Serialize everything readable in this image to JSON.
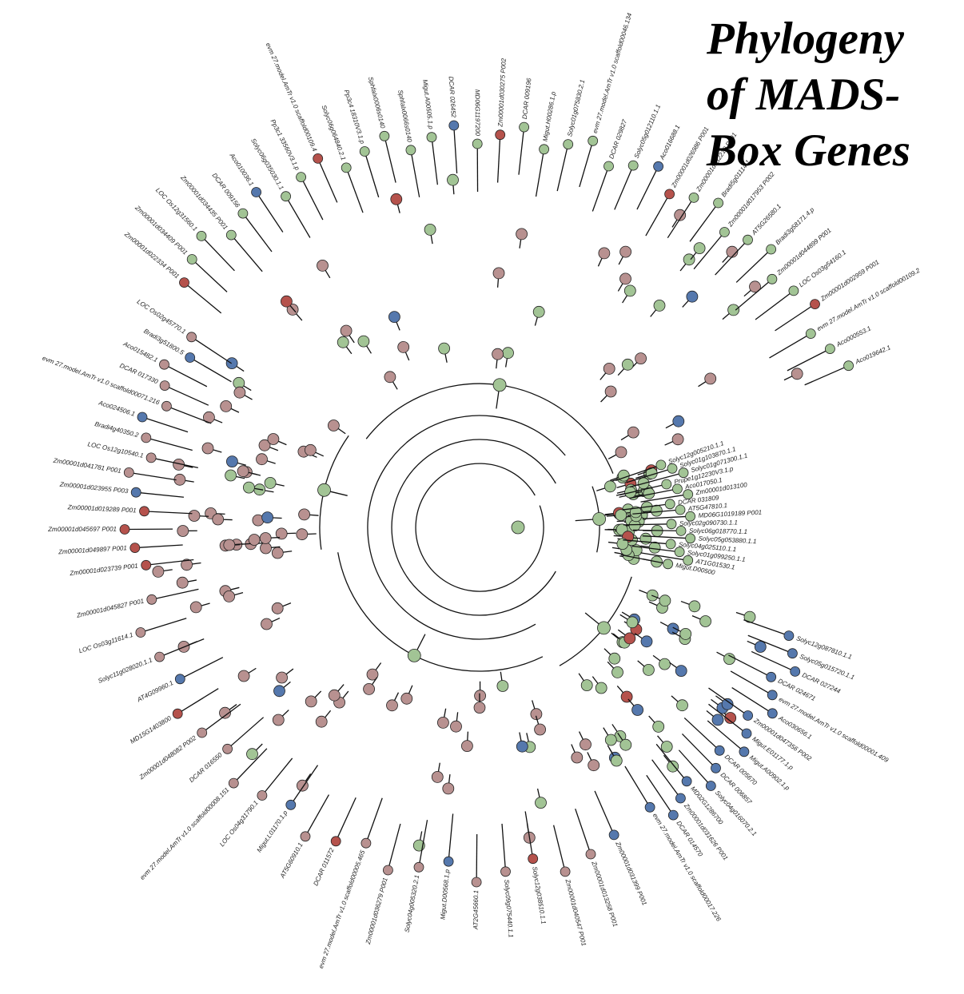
{
  "title_lines": [
    "Phylogeny",
    "of MADS-",
    "Box Genes"
  ],
  "colors": {
    "brown": "#b89190",
    "green": "#a2c495",
    "blue": "#5578ad",
    "red": "#b5524c",
    "branch": "#111111"
  },
  "tree": {
    "clades": [
      {
        "color": "green",
        "labels": [
          "Solyc12g005210.1.1",
          "Solyc01g103870.1.1",
          "Solyc01g071300.1.1",
          "Prupe1g12230V3.1.p",
          "Aco017050.1",
          "Zm00001d013100",
          "DCAR 031809",
          "AT5G47810.1",
          "MD06G1019189 P001",
          "Solyc02g090730.1.1",
          "Solyc06g018770.1.1",
          "Solyc05g053880.1.1",
          "Solyc04g025110.1.1",
          "Solyc01g099250.1.1",
          "AT1G01530.1",
          "Migut.D00500"
        ]
      },
      {
        "color": "blue",
        "labels": [
          "Solyc12g087810.1.1",
          "Solyc05g015720.1.1",
          "DCAR 027244",
          "DCAR 024671",
          "evm 27.model.AmTr v1.0 scaffold00001.409",
          "Aco030656.1",
          "Zm00001d047356 P002",
          "Migut.E01177.1.p",
          "Migut.A00902.1.p",
          "DCAR 005670",
          "DCAR 006857",
          "Solyc04g016070.2.1",
          "MD02G1286700",
          "Zm00001d031626 P001",
          "DCAR 014570",
          "evm 27.model.AmTr v1.0 scaffold00017.226"
        ]
      },
      {
        "color": "brown",
        "labels": [
          "Zm00001d031399 P001",
          "Zm00001d013258 P001",
          "Zm00001d040547 P001",
          "Solyc12g038510.1.1",
          "Solyc09g075440.1.1",
          "AT2G45660.1",
          "Migut.D00568.1.p",
          "Solyc04g005320.2.1",
          "Zm00001d036279 P001",
          "evm 27.model.AmTr v1.0 scaffold00005.465",
          "DCAR 011572",
          "AT5G60910.1",
          "Migut.L01170.1.p",
          "LOC Os04g31790.1",
          "evm 27.model.AmTr v1.0 scaffold00008.151",
          "DCAR 016550",
          "Zm00001d048082 P002",
          "MD15G1403800",
          "AT4G09960.1",
          "Solyc11g028020.1.1",
          "LOC Os03g11614.1",
          "Zm00001d045827 P001"
        ]
      },
      {
        "color": "red",
        "labels": [
          "Zm00001d023739 P001",
          "Zm00001d049897 P001",
          "Zm00001d045697 P001",
          "Zm00001d019289 P001",
          "Zm00001d023955 P003",
          "Zm00001d041781 P001",
          "LOC Os12g10540.1",
          "Bradi4g40350.2",
          "Aco024506.1",
          "evm 27.model.AmTr v1.0 scaffold00071.216",
          "DCAR 017330",
          "Aco015482.1",
          "Bradi3g51800.5",
          "LOC Os02g45770.1"
        ]
      },
      {
        "color": "green",
        "labels": [
          "Zm00001d022334 P001",
          "Zm00001d034409 P001",
          "LOC Os12g31560.1",
          "Zm00001d034435 P001",
          "DCAR 009156",
          "Aco010036.1",
          "Solyc06g035030.1.1",
          "Pp3c1 33560V3.1.p",
          "evm 27.model.AmTr v1.0 scaffold00109.4",
          "Solyc06g064840.2.1",
          "Pp3c4 18310V3.1.p",
          "Sphfalx0006s0140",
          "Sphfalx0066s0140",
          "Migut.A00505.1.p",
          "DCAR 026452",
          "MD06G1197200",
          "Zm00001d030275 P002",
          "DCAR 009196",
          "Migut.H00286.1.p",
          "Solyc01g075830.2.1",
          "evm 27.model.AmTr v1.0 scaffold00046.134",
          "DCAR 029827",
          "Solyc05g012110.1.1",
          "Aco016688.1",
          "Zm00001d026986 P001",
          "Zm00001d032219 P001",
          "Bradi5g01114.1",
          "Zm00001d017953 P002",
          "AT5G26580.1",
          "Bradi3g58171.4.p",
          "Zm00001d044899 P001",
          "LOC Os03g54160.1",
          "Zm00001d002959 P001",
          "evm 27.model.AmTr v1.0 scaffold00109.2",
          "Aco000553.1",
          "Aco019642.1"
        ]
      }
    ]
  }
}
